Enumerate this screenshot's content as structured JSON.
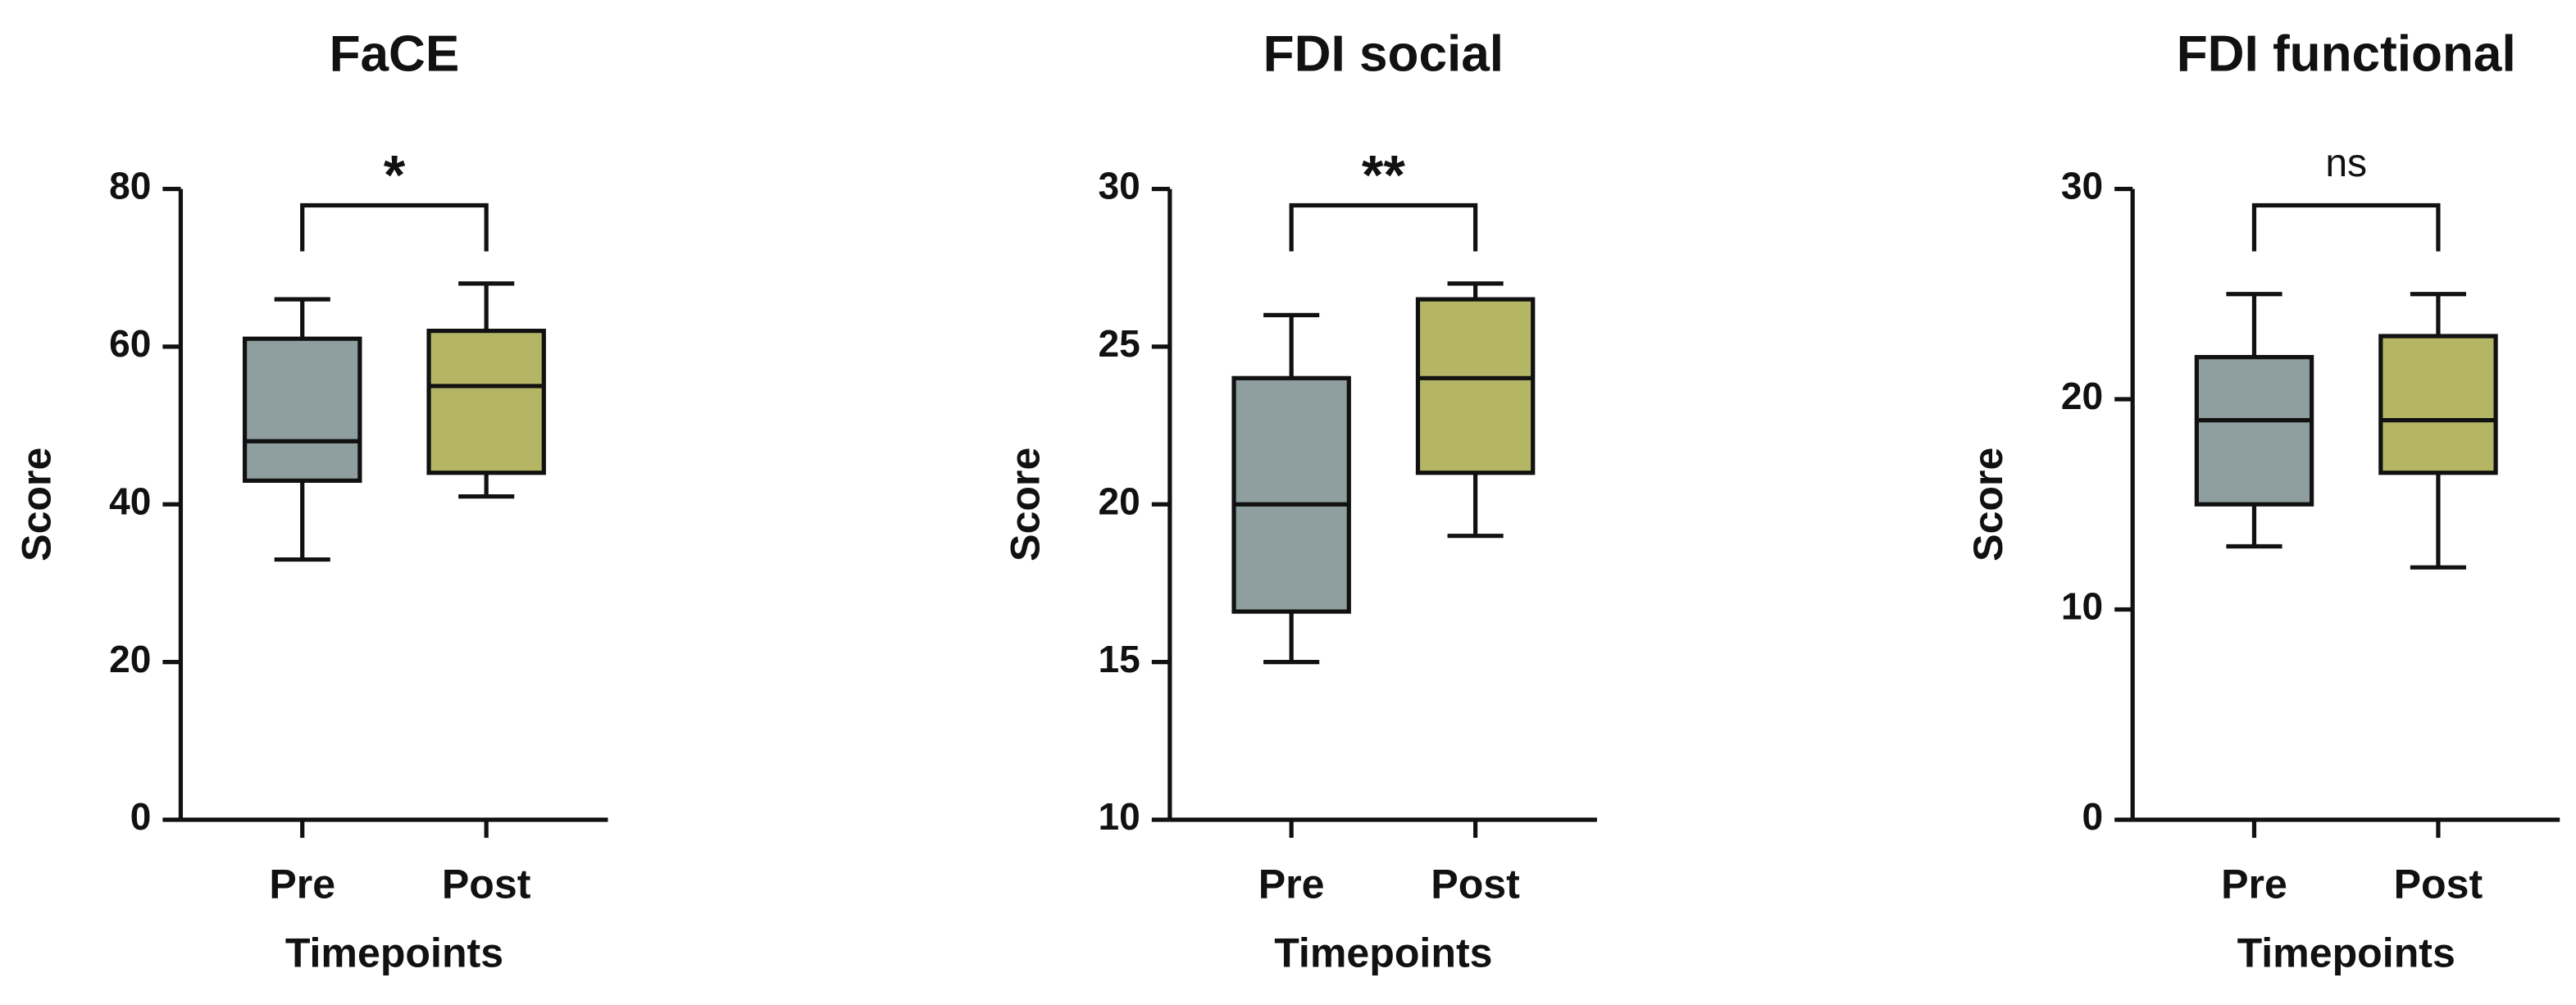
{
  "chart_data": [
    {
      "type": "box",
      "title": "FaCE",
      "ylabel": "Score",
      "xlabel": "Timepoints",
      "annotation": "*",
      "categories": [
        "Pre",
        "Post"
      ],
      "colors": [
        "#8f9e9e",
        "#b4b666"
      ],
      "boxes": [
        {
          "min": 33,
          "q1": 43,
          "median": 48,
          "q3": 61,
          "max": 66
        },
        {
          "min": 41,
          "q1": 44,
          "median": 55,
          "q3": 62,
          "max": 68
        }
      ],
      "ylim": [
        0,
        80
      ],
      "yticks": [
        0,
        20,
        40,
        60,
        80
      ]
    },
    {
      "type": "box",
      "title": "FDI social",
      "ylabel": "Score",
      "xlabel": "Timepoints",
      "annotation": "**",
      "categories": [
        "Pre",
        "Post"
      ],
      "colors": [
        "#8f9e9e",
        "#b4b666"
      ],
      "boxes": [
        {
          "min": 15,
          "q1": 16.6,
          "median": 20,
          "q3": 24,
          "max": 26
        },
        {
          "min": 19,
          "q1": 21,
          "median": 24,
          "q3": 26.5,
          "max": 27
        }
      ],
      "ylim": [
        10,
        30
      ],
      "yticks": [
        10,
        15,
        20,
        25,
        30
      ]
    },
    {
      "type": "box",
      "title": "FDI functional",
      "ylabel": "Score",
      "xlabel": "Timepoints",
      "annotation": "ns",
      "categories": [
        "Pre",
        "Post"
      ],
      "colors": [
        "#8f9e9e",
        "#b4b666"
      ],
      "boxes": [
        {
          "min": 13,
          "q1": 15,
          "median": 19,
          "q3": 22,
          "max": 25
        },
        {
          "min": 12,
          "q1": 16.5,
          "median": 19,
          "q3": 23,
          "max": 25
        }
      ],
      "ylim": [
        0,
        30
      ],
      "yticks": [
        0,
        10,
        20,
        30
      ]
    }
  ]
}
